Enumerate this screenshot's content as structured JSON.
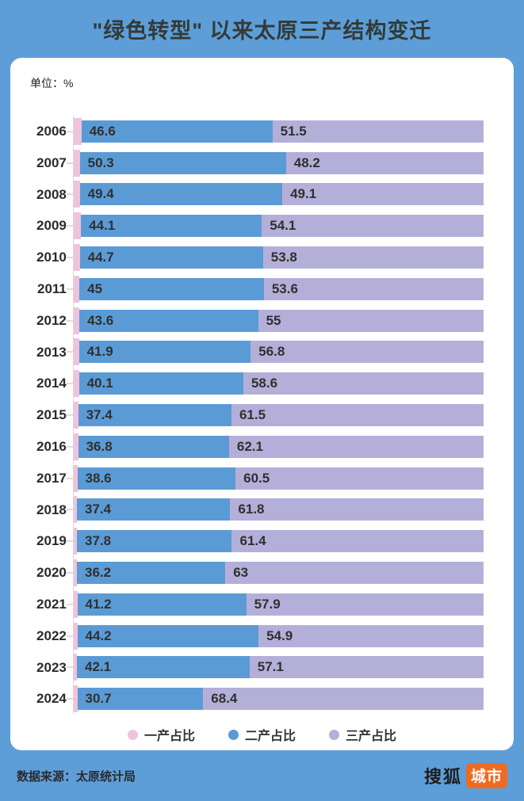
{
  "page": {
    "background_color": "#5d9ed9",
    "card_color": "#ffffff"
  },
  "header": {
    "title": "\"绿色转型\" 以来太原三产结构变迁"
  },
  "chart_data": {
    "type": "bar",
    "direction": "horizontal",
    "stacked": true,
    "title": "\"绿色转型\" 以来太原三产结构变迁",
    "unit_label": "单位：%",
    "xlim": [
      0,
      100
    ],
    "grid": false,
    "legend_position": "bottom",
    "categories": [
      "2006",
      "2007",
      "2008",
      "2009",
      "2010",
      "2011",
      "2012",
      "2013",
      "2014",
      "2015",
      "2016",
      "2017",
      "2018",
      "2019",
      "2020",
      "2021",
      "2022",
      "2023",
      "2024"
    ],
    "series": [
      {
        "name": "一产占比",
        "color": "#efc3dc",
        "note": "segment width drawn as remainder to 100%, values not labeled on chart"
      },
      {
        "name": "二产占比",
        "color": "#5b9bd5",
        "values": [
          46.6,
          50.3,
          49.4,
          44.1,
          44.7,
          45,
          43.6,
          41.9,
          40.1,
          37.4,
          36.8,
          38.6,
          37.4,
          37.8,
          36.2,
          41.2,
          44.2,
          42.1,
          30.7
        ]
      },
      {
        "name": "三产占比",
        "color": "#b4afd9",
        "values": [
          51.5,
          48.2,
          49.1,
          54.1,
          53.8,
          53.6,
          55,
          56.8,
          58.6,
          61.5,
          62.1,
          60.5,
          61.8,
          61.4,
          63,
          57.9,
          54.9,
          57.1,
          68.4
        ]
      }
    ]
  },
  "footer": {
    "source_label": "数据来源：太原统计局",
    "logo_text": "搜狐",
    "logo_badge": "城市",
    "logo_badge_color": "#f06a21"
  }
}
